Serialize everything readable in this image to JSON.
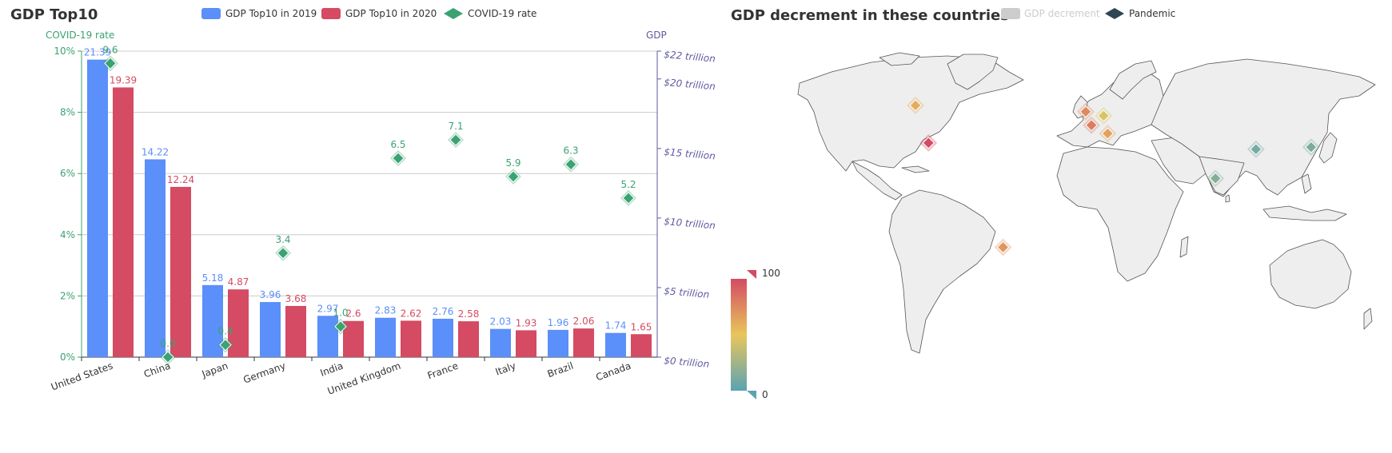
{
  "chart_data": [
    {
      "type": "bar",
      "title": "GDP Top10",
      "categories": [
        "United States",
        "China",
        "Japan",
        "Germany",
        "India",
        "United Kingdom",
        "France",
        "Italy",
        "Brazil",
        "Canada"
      ],
      "series": [
        {
          "name": "GDP Top10 in 2019",
          "values": [
            21.39,
            14.22,
            5.18,
            3.96,
            2.97,
            2.83,
            2.76,
            2.03,
            1.96,
            1.74
          ],
          "color": "#5b8ff9",
          "axis": "right"
        },
        {
          "name": "GDP Top10 in 2020",
          "values": [
            19.39,
            12.24,
            4.87,
            3.68,
            2.6,
            2.62,
            2.58,
            1.93,
            2.06,
            1.65
          ],
          "color": "#d44b63",
          "axis": "right"
        },
        {
          "name": "COVID-19 rate",
          "values": [
            9.6,
            0.0,
            0.4,
            3.4,
            1.0,
            6.5,
            7.1,
            5.9,
            6.3,
            5.2
          ],
          "color": "#3ba272",
          "type": "scatter",
          "axis": "left"
        }
      ],
      "y_left": {
        "label": "COVID-19 rate",
        "ticks": [
          "0%",
          "2%",
          "4%",
          "6%",
          "8%",
          "10%"
        ],
        "ylim": [
          0,
          10
        ],
        "color": "#3ba272"
      },
      "y_right": {
        "label": "GDP",
        "ticks": [
          "$0 trillion",
          "$5 trillion",
          "$10 trillion",
          "$15 trillion",
          "$20 trillion",
          "$22 trillion"
        ],
        "tick_values": [
          0,
          5,
          10,
          15,
          20,
          22
        ],
        "ylim": [
          0,
          22
        ],
        "color": "#5f5aa2"
      },
      "grid": true,
      "legend": "top-center"
    },
    {
      "type": "map",
      "title": "GDP decrement in these countries",
      "legend": [
        {
          "name": "GDP decrement",
          "color": "#cccccc",
          "state": "inactive"
        },
        {
          "name": "Pandemic",
          "color": "#2f4554",
          "state": "active"
        }
      ],
      "visual_map": {
        "min": 0,
        "max": 100,
        "min_label": "0",
        "max_label": "100",
        "colors": [
          "#5aa3b3",
          "#e8c65c",
          "#d44b63"
        ]
      },
      "markers": [
        {
          "name": "Canada",
          "lon": -106,
          "lat": 56,
          "level": 60
        },
        {
          "name": "United States",
          "lon": -98,
          "lat": 38,
          "level": 100
        },
        {
          "name": "Brazil",
          "lon": -52,
          "lat": -12,
          "level": 70
        },
        {
          "name": "United Kingdom",
          "lon": -1,
          "lat": 53,
          "level": 75
        },
        {
          "name": "France",
          "lon": 2.5,
          "lat": 46.5,
          "level": 80
        },
        {
          "name": "Germany",
          "lon": 10,
          "lat": 51,
          "level": 45
        },
        {
          "name": "Italy",
          "lon": 12.5,
          "lat": 42.5,
          "level": 65
        },
        {
          "name": "India",
          "lon": 79,
          "lat": 21,
          "level": 15
        },
        {
          "name": "China",
          "lon": 104,
          "lat": 35,
          "level": 10
        },
        {
          "name": "Japan",
          "lon": 138,
          "lat": 36,
          "level": 12
        }
      ]
    }
  ]
}
